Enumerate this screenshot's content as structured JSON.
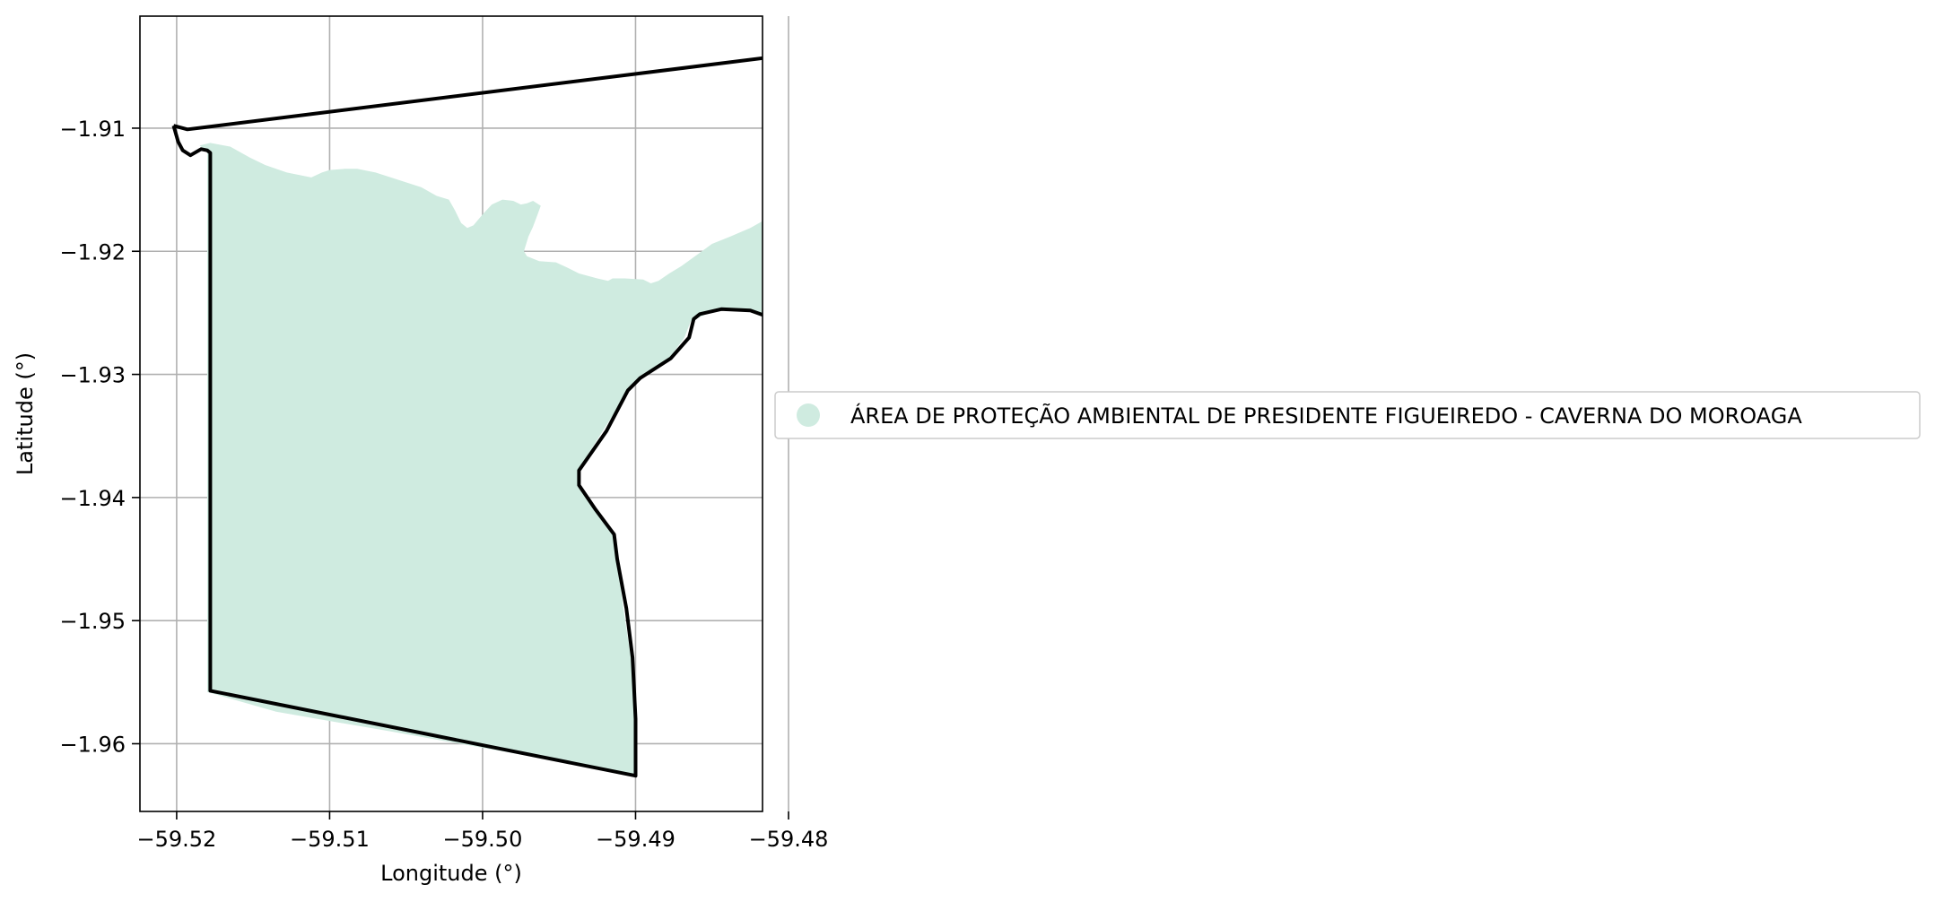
{
  "chart_data": {
    "type": "map",
    "title": "",
    "xlabel": "Longitude (°)",
    "ylabel": "Latitude (°)",
    "xlim": [
      -59.5224,
      -59.4817
    ],
    "ylim": [
      -1.9655,
      -1.9009
    ],
    "grid": true,
    "x_ticks": [
      -59.52,
      -59.51,
      -59.5,
      -59.49,
      -59.48
    ],
    "x_tick_labels": [
      "−59.52",
      "−59.51",
      "−59.50",
      "−59.49",
      "−59.48"
    ],
    "y_ticks": [
      -1.91,
      -1.92,
      -1.93,
      -1.94,
      -1.95,
      -1.96
    ],
    "y_tick_labels": [
      "−1.91",
      "−1.92",
      "−1.93",
      "−1.94",
      "−1.95",
      "−1.96"
    ],
    "legend_position": "center-right",
    "legend": [
      {
        "label": "ÁREA DE PROTEÇÃO AMBIENTAL DE PRESIDENTE FIGUEIREDO - CAVERNA DO MOROAGA",
        "color": "#cfebe0"
      }
    ],
    "fill_color": "#cfebe0",
    "boundary_color": "#000000",
    "protected_area": [
      [
        -59.5185,
        -1.9114
      ],
      [
        -59.5178,
        -1.9112
      ],
      [
        -59.5165,
        -1.9115
      ],
      [
        -59.5152,
        -1.9124
      ],
      [
        -59.5142,
        -1.913
      ],
      [
        -59.5128,
        -1.9136
      ],
      [
        -59.5112,
        -1.914
      ],
      [
        -59.5105,
        -1.9136
      ],
      [
        -59.51,
        -1.9134
      ],
      [
        -59.509,
        -1.9133
      ],
      [
        -59.5082,
        -1.9133
      ],
      [
        -59.507,
        -1.9136
      ],
      [
        -59.5055,
        -1.9142
      ],
      [
        -59.504,
        -1.9148
      ],
      [
        -59.503,
        -1.9155
      ],
      [
        -59.5022,
        -1.9158
      ],
      [
        -59.5018,
        -1.9167
      ],
      [
        -59.5014,
        -1.9177
      ],
      [
        -59.501,
        -1.9181
      ],
      [
        -59.5006,
        -1.9179
      ],
      [
        -59.5,
        -1.917
      ],
      [
        -59.4994,
        -1.9162
      ],
      [
        -59.4987,
        -1.9158
      ],
      [
        -59.498,
        -1.9159
      ],
      [
        -59.4975,
        -1.9162
      ],
      [
        -59.4971,
        -1.9161
      ],
      [
        -59.4967,
        -1.9159
      ],
      [
        -59.4962,
        -1.9163
      ],
      [
        -59.4964,
        -1.917
      ],
      [
        -59.4967,
        -1.918
      ],
      [
        -59.497,
        -1.9188
      ],
      [
        -59.4973,
        -1.92
      ],
      [
        -59.4971,
        -1.9204
      ],
      [
        -59.4963,
        -1.9208
      ],
      [
        -59.4952,
        -1.9209
      ],
      [
        -59.4945,
        -1.9213
      ],
      [
        -59.4937,
        -1.9218
      ],
      [
        -59.4925,
        -1.9222
      ],
      [
        -59.4918,
        -1.9224
      ],
      [
        -59.4915,
        -1.9222
      ],
      [
        -59.4907,
        -1.9222
      ],
      [
        -59.4895,
        -1.9223
      ],
      [
        -59.489,
        -1.9226
      ],
      [
        -59.4885,
        -1.9224
      ],
      [
        -59.4878,
        -1.9218
      ],
      [
        -59.487,
        -1.9212
      ],
      [
        -59.486,
        -1.9203
      ],
      [
        -59.485,
        -1.9194
      ],
      [
        -59.4838,
        -1.9188
      ],
      [
        -59.4825,
        -1.9181
      ],
      [
        -59.4812,
        -1.9172
      ],
      [
        -59.48,
        -1.9167
      ],
      [
        -59.4786,
        -1.9164
      ],
      [
        -59.4775,
        -1.9161
      ],
      [
        -59.4763,
        -1.9164
      ],
      [
        -59.4755,
        -1.918
      ],
      [
        -59.474,
        -1.9204
      ],
      [
        -59.4748,
        -1.9226
      ],
      [
        -59.476,
        -1.9248
      ],
      [
        -59.4778,
        -1.9261
      ],
      [
        -59.4793,
        -1.9268
      ],
      [
        -59.48,
        -1.9262
      ],
      [
        -59.4806,
        -1.9257
      ],
      [
        -59.4825,
        -1.9248
      ],
      [
        -59.4842,
        -1.9247
      ],
      [
        -59.4852,
        -1.925
      ],
      [
        -59.4864,
        -1.9257
      ],
      [
        -59.4868,
        -1.927
      ],
      [
        -59.4878,
        -1.9287
      ],
      [
        -59.4895,
        -1.93
      ],
      [
        -59.4903,
        -1.9311
      ],
      [
        -59.492,
        -1.9343
      ],
      [
        -59.4937,
        -1.9377
      ],
      [
        -59.4938,
        -1.9388
      ],
      [
        -59.4925,
        -1.941
      ],
      [
        -59.4915,
        -1.943
      ],
      [
        -59.4912,
        -1.945
      ],
      [
        -59.4908,
        -1.949
      ],
      [
        -59.4903,
        -1.953
      ],
      [
        -59.49,
        -1.958
      ],
      [
        -59.49,
        -1.9626
      ],
      [
        -59.4965,
        -1.9611
      ],
      [
        -59.506,
        -1.959
      ],
      [
        -59.5135,
        -1.9574
      ],
      [
        -59.518,
        -1.9558
      ],
      [
        -59.518,
        -1.912
      ],
      [
        -59.5182,
        -1.9117
      ]
    ],
    "boundary": [
      [
        -59.5202,
        -1.9098
      ],
      [
        -59.5193,
        -1.9101
      ],
      [
        -59.518,
        -1.9099
      ],
      [
        -59.479,
        -1.9039
      ],
      [
        -59.4778,
        -1.904
      ],
      [
        -59.4758,
        -1.9058
      ],
      [
        -59.4752,
        -1.9076
      ],
      [
        -59.475,
        -1.912
      ],
      [
        -59.475,
        -1.9166
      ],
      [
        -59.474,
        -1.9185
      ],
      [
        -59.4737,
        -1.9202
      ],
      [
        -59.4742,
        -1.9216
      ],
      [
        -59.476,
        -1.9248
      ],
      [
        -59.4778,
        -1.9262
      ],
      [
        -59.4793,
        -1.9268
      ],
      [
        -59.4795,
        -1.9266
      ],
      [
        -59.4805,
        -1.9257
      ],
      [
        -59.4825,
        -1.9248
      ],
      [
        -59.4844,
        -1.9247
      ],
      [
        -59.4858,
        -1.9251
      ],
      [
        -59.4862,
        -1.9255
      ],
      [
        -59.4865,
        -1.927
      ],
      [
        -59.4877,
        -1.9287
      ],
      [
        -59.4897,
        -1.9303
      ],
      [
        -59.4905,
        -1.9313
      ],
      [
        -59.4919,
        -1.9346
      ],
      [
        -59.4937,
        -1.9378
      ],
      [
        -59.4937,
        -1.939
      ],
      [
        -59.4926,
        -1.941
      ],
      [
        -59.4914,
        -1.943
      ],
      [
        -59.4912,
        -1.945
      ],
      [
        -59.4906,
        -1.949
      ],
      [
        -59.4902,
        -1.953
      ],
      [
        -59.49,
        -1.958
      ],
      [
        -59.49,
        -1.9626
      ],
      [
        -59.5178,
        -1.9557
      ],
      [
        -59.5178,
        -1.912
      ],
      [
        -59.518,
        -1.9118
      ],
      [
        -59.5184,
        -1.9117
      ],
      [
        -59.5191,
        -1.9122
      ],
      [
        -59.5196,
        -1.9118
      ],
      [
        -59.5199,
        -1.9111
      ],
      [
        -59.5202,
        -1.9098
      ]
    ]
  }
}
